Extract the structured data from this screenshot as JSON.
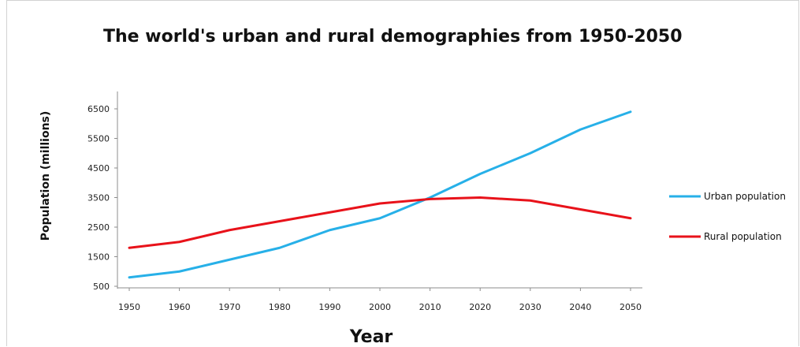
{
  "chart_data": {
    "type": "line",
    "title": "The world's urban and rural demographies from 1950-2050",
    "xlabel": "Year",
    "ylabel": "Population (millions)",
    "x": [
      1950,
      1960,
      1970,
      1980,
      1990,
      2000,
      2010,
      2020,
      2030,
      2040,
      2050
    ],
    "y_ticks": [
      500,
      1500,
      2500,
      3500,
      4500,
      5500,
      6500
    ],
    "ylim": [
      500,
      7000
    ],
    "grid": false,
    "legend_position": "right",
    "series": [
      {
        "name": "Urban population",
        "color": "#27b0e8",
        "values": [
          800,
          1000,
          1400,
          1800,
          2400,
          2800,
          3500,
          4300,
          5000,
          5800,
          6400
        ]
      },
      {
        "name": "Rural population",
        "color": "#e8121a",
        "values": [
          1800,
          2000,
          2400,
          2700,
          3000,
          3300,
          3450,
          3500,
          3400,
          3100,
          2800
        ]
      }
    ]
  }
}
